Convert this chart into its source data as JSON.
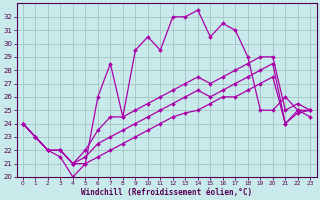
{
  "xlabel": "Windchill (Refroidissement éolien,°C)",
  "x": [
    0,
    1,
    2,
    3,
    4,
    5,
    6,
    7,
    8,
    9,
    10,
    11,
    12,
    13,
    14,
    15,
    16,
    17,
    18,
    19,
    20,
    21,
    22,
    23
  ],
  "line1": [
    24,
    23,
    22,
    21.5,
    20,
    21,
    26,
    28.5,
    24.5,
    29.5,
    30.5,
    29.5,
    32,
    32,
    32.5,
    30.5,
    31.5,
    31,
    29,
    25,
    25,
    26,
    25,
    25
  ],
  "line2": [
    24,
    23,
    22,
    22,
    21,
    22,
    23.5,
    24.5,
    24.5,
    25,
    25.5,
    26,
    26.5,
    27,
    27.5,
    27,
    27.5,
    28,
    28.5,
    29,
    29,
    25,
    25.5,
    25
  ],
  "line3": [
    24,
    23,
    22,
    22,
    21,
    21.5,
    22.5,
    23,
    23.5,
    24,
    24.5,
    25,
    25.5,
    26,
    26.5,
    26,
    26.5,
    27,
    27.5,
    28,
    28.5,
    24,
    25,
    24.5
  ],
  "line4": [
    24,
    23,
    22,
    22,
    21,
    21,
    21.5,
    22,
    22.5,
    23,
    23.5,
    24,
    24.5,
    24.8,
    25,
    25.5,
    26,
    26,
    26.5,
    27,
    27.5,
    24,
    24.8,
    25
  ],
  "line_color": "#aa00aa",
  "bg_color": "#c8eaea",
  "grid_color": "#9dbdbd",
  "ylim": [
    20,
    33
  ],
  "xlim_min": -0.5,
  "xlim_max": 23.5,
  "yticks": [
    20,
    21,
    22,
    23,
    24,
    25,
    26,
    27,
    28,
    29,
    30,
    31,
    32
  ],
  "xticks": [
    0,
    1,
    2,
    3,
    4,
    5,
    6,
    7,
    8,
    9,
    10,
    11,
    12,
    13,
    14,
    15,
    16,
    17,
    18,
    19,
    20,
    21,
    22,
    23
  ],
  "tick_color": "#550055",
  "label_fontsize": 5.5,
  "tick_fontsize": 5.0,
  "lw": 0.9,
  "ms": 2.0
}
